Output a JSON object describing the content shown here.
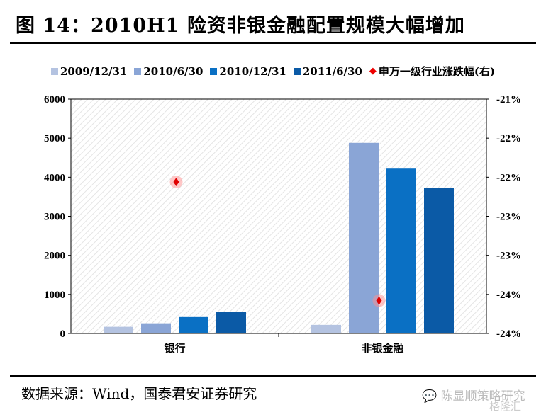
{
  "title": "图 14：2010H1 险资非银金融配置规模大幅增加",
  "source": "数据来源：Wind，国泰君安证券研究",
  "watermark": "陈显顺策略研究",
  "watermark2": "格隆汇",
  "chart_data": {
    "type": "bar",
    "categories": [
      "银行",
      "非银金融"
    ],
    "series": [
      {
        "name": "2009/12/31",
        "color": "#b4c3e1",
        "values": [
          170,
          220
        ]
      },
      {
        "name": "2010/6/30",
        "color": "#8aa5d6",
        "values": [
          260,
          4880
        ]
      },
      {
        "name": "2010/12/31",
        "color": "#0a70c4",
        "values": [
          420,
          4220
        ]
      },
      {
        "name": "2011/6/30",
        "color": "#0b5aa6",
        "values": [
          550,
          3730
        ]
      }
    ],
    "line_series": {
      "name": "申万一级行业涨跌幅(右)",
      "color": "#e00000",
      "values": [
        -22.06,
        -23.58
      ]
    },
    "ylim": [
      0,
      6000
    ],
    "yticks": [
      "0",
      "1000",
      "2000",
      "3000",
      "4000",
      "5000",
      "6000"
    ],
    "y2lim": [
      -24,
      -21
    ],
    "y2ticks": [
      "-24%",
      "-24%",
      "-23%",
      "-23%",
      "-22%",
      "-22%",
      "-21%"
    ]
  }
}
